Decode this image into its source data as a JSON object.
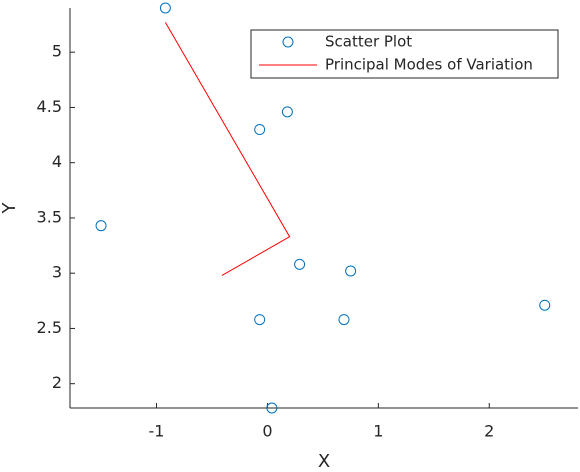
{
  "chart_data": {
    "type": "scatter",
    "x_label": "X",
    "y_label": "Y",
    "xlim": [
      -1.78,
      2.8
    ],
    "ylim": [
      1.78,
      5.4
    ],
    "xticks": [
      -1,
      0,
      1,
      2
    ],
    "yticks": [
      2,
      2.5,
      3,
      3.5,
      4,
      4.5,
      5
    ],
    "legend": "northeast",
    "series": [
      {
        "name": "Scatter Plot",
        "type": "scatter",
        "color": "#0072bd",
        "x": [
          -0.92,
          -0.07,
          0.18,
          -1.5,
          0.29,
          0.75,
          -0.07,
          0.69,
          2.5,
          0.04
        ],
        "values": [
          5.4,
          4.3,
          4.46,
          3.43,
          3.08,
          3.02,
          2.58,
          2.58,
          2.71,
          1.78
        ]
      },
      {
        "name": "Principal Modes of Variation",
        "type": "line",
        "color": "#ff0000",
        "x": [
          -0.92,
          0.2,
          -0.41
        ],
        "values": [
          5.27,
          3.33,
          2.98
        ]
      }
    ]
  }
}
